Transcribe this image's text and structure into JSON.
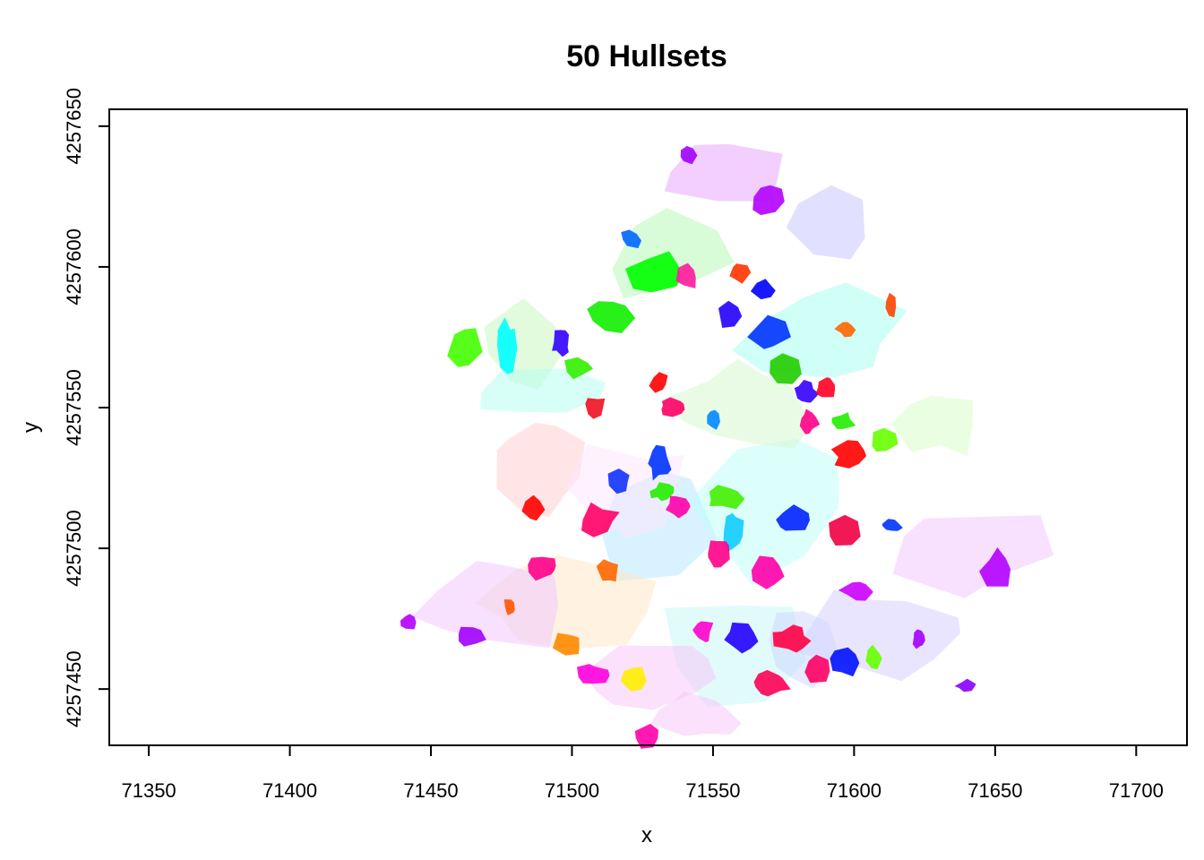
{
  "chart_data": {
    "type": "area",
    "title": "50 Hullsets",
    "xlabel": "x",
    "ylabel": "y",
    "xlim": [
      71336,
      71718
    ],
    "ylim": [
      4257430,
      4257656
    ],
    "xticks": [
      71350,
      71400,
      71450,
      71500,
      71550,
      71600,
      71650,
      71700
    ],
    "yticks": [
      4257450,
      4257500,
      4257550,
      4257600,
      4257650
    ],
    "xtick_labels": [
      "71350",
      "71400",
      "71450",
      "71500",
      "71550",
      "71600",
      "71650",
      "71700"
    ],
    "ytick_labels": [
      "4257450",
      "4257500",
      "4257550",
      "4257600",
      "4257650"
    ],
    "hull_count": 50,
    "data_extent": {
      "x": [
        71437,
        71680
      ],
      "y": [
        4257445,
        4257652
      ]
    },
    "hulls_solid": [
      {
        "x": 71541,
        "y": 4257640,
        "w": 9,
        "h": 10,
        "color": "#a100ff"
      },
      {
        "x": 71569,
        "y": 4257624,
        "w": 14,
        "h": 14,
        "color": "#b300ff"
      },
      {
        "x": 71521,
        "y": 4257610,
        "w": 10,
        "h": 9,
        "color": "#0066ff"
      },
      {
        "x": 71530,
        "y": 4257598,
        "w": 26,
        "h": 18,
        "color": "#00ff00"
      },
      {
        "x": 71513,
        "y": 4257583,
        "w": 20,
        "h": 16,
        "color": "#11ee00"
      },
      {
        "x": 71541,
        "y": 4257597,
        "w": 9,
        "h": 12,
        "color": "#ff1aa0"
      },
      {
        "x": 71559,
        "y": 4257598,
        "w": 10,
        "h": 10,
        "color": "#ff3300"
      },
      {
        "x": 71568,
        "y": 4257592,
        "w": 11,
        "h": 9,
        "color": "#0000ff"
      },
      {
        "x": 71556,
        "y": 4257583,
        "w": 11,
        "h": 11,
        "color": "#2200ff"
      },
      {
        "x": 71570,
        "y": 4257576,
        "w": 16,
        "h": 16,
        "color": "#0033ff"
      },
      {
        "x": 71597,
        "y": 4257578,
        "w": 8,
        "h": 7,
        "color": "#ff6600"
      },
      {
        "x": 71613,
        "y": 4257586,
        "w": 6,
        "h": 12,
        "color": "#ff4400"
      },
      {
        "x": 71462,
        "y": 4257572,
        "w": 14,
        "h": 20,
        "color": "#44ff00"
      },
      {
        "x": 71477,
        "y": 4257572,
        "w": 8,
        "h": 24,
        "color": "#00ffff"
      },
      {
        "x": 71496,
        "y": 4257573,
        "w": 8,
        "h": 12,
        "color": "#3300ff"
      },
      {
        "x": 71502,
        "y": 4257564,
        "w": 12,
        "h": 10,
        "color": "#33ee00"
      },
      {
        "x": 71508,
        "y": 4257550,
        "w": 10,
        "h": 10,
        "color": "#ee1122"
      },
      {
        "x": 71531,
        "y": 4257559,
        "w": 8,
        "h": 10,
        "color": "#ff0000"
      },
      {
        "x": 71536,
        "y": 4257550,
        "w": 14,
        "h": 8,
        "color": "#ff0066"
      },
      {
        "x": 71550,
        "y": 4257546,
        "w": 6,
        "h": 10,
        "color": "#0088ff"
      },
      {
        "x": 71575,
        "y": 4257564,
        "w": 14,
        "h": 14,
        "color": "#22cc00"
      },
      {
        "x": 71583,
        "y": 4257555,
        "w": 10,
        "h": 12,
        "color": "#3300ff"
      },
      {
        "x": 71590,
        "y": 4257557,
        "w": 10,
        "h": 10,
        "color": "#ff0022"
      },
      {
        "x": 71584,
        "y": 4257545,
        "w": 8,
        "h": 10,
        "color": "#ff0088"
      },
      {
        "x": 71596,
        "y": 4257545,
        "w": 10,
        "h": 8,
        "color": "#22ee00"
      },
      {
        "x": 71599,
        "y": 4257533,
        "w": 16,
        "h": 12,
        "color": "#ff0000"
      },
      {
        "x": 71610,
        "y": 4257538,
        "w": 12,
        "h": 12,
        "color": "#66ff00"
      },
      {
        "x": 71531,
        "y": 4257530,
        "w": 10,
        "h": 14,
        "color": "#0033ff"
      },
      {
        "x": 71517,
        "y": 4257524,
        "w": 10,
        "h": 10,
        "color": "#1133ff"
      },
      {
        "x": 71532,
        "y": 4257520,
        "w": 10,
        "h": 8,
        "color": "#22ee00"
      },
      {
        "x": 71554,
        "y": 4257518,
        "w": 16,
        "h": 10,
        "color": "#44ee00"
      },
      {
        "x": 71486,
        "y": 4257515,
        "w": 10,
        "h": 12,
        "color": "#ff0000"
      },
      {
        "x": 71510,
        "y": 4257510,
        "w": 16,
        "h": 14,
        "color": "#ff0066"
      },
      {
        "x": 71538,
        "y": 4257515,
        "w": 12,
        "h": 10,
        "color": "#ff00aa"
      },
      {
        "x": 71557,
        "y": 4257506,
        "w": 10,
        "h": 16,
        "color": "#11ccff"
      },
      {
        "x": 71578,
        "y": 4257510,
        "w": 18,
        "h": 12,
        "color": "#0022ff"
      },
      {
        "x": 71597,
        "y": 4257506,
        "w": 14,
        "h": 12,
        "color": "#ee0044"
      },
      {
        "x": 71613,
        "y": 4257508,
        "w": 10,
        "h": 6,
        "color": "#0033ff"
      },
      {
        "x": 71552,
        "y": 4257498,
        "w": 10,
        "h": 12,
        "color": "#ff0088"
      },
      {
        "x": 71570,
        "y": 4257492,
        "w": 14,
        "h": 16,
        "color": "#ff00aa"
      },
      {
        "x": 71490,
        "y": 4257493,
        "w": 14,
        "h": 10,
        "color": "#ff0088"
      },
      {
        "x": 71513,
        "y": 4257492,
        "w": 10,
        "h": 10,
        "color": "#ff6600"
      },
      {
        "x": 71478,
        "y": 4257479,
        "w": 6,
        "h": 8,
        "color": "#ff5500"
      },
      {
        "x": 71601,
        "y": 4257485,
        "w": 14,
        "h": 10,
        "color": "#cc00ff"
      },
      {
        "x": 71651,
        "y": 4257493,
        "w": 14,
        "h": 16,
        "color": "#b300ff"
      },
      {
        "x": 71546,
        "y": 4257471,
        "w": 10,
        "h": 10,
        "color": "#ff00cc"
      },
      {
        "x": 71560,
        "y": 4257468,
        "w": 14,
        "h": 14,
        "color": "#2200ff"
      },
      {
        "x": 71578,
        "y": 4257468,
        "w": 16,
        "h": 14,
        "color": "#ff0044"
      },
      {
        "x": 71596,
        "y": 4257460,
        "w": 14,
        "h": 14,
        "color": "#0011ff"
      },
      {
        "x": 71587,
        "y": 4257457,
        "w": 14,
        "h": 14,
        "color": "#ff0066"
      },
      {
        "x": 71570,
        "y": 4257452,
        "w": 18,
        "h": 12,
        "color": "#ff0055"
      },
      {
        "x": 71464,
        "y": 4257469,
        "w": 14,
        "h": 10,
        "color": "#a100ff"
      },
      {
        "x": 71442,
        "y": 4257474,
        "w": 7,
        "h": 7,
        "color": "#b300ff"
      },
      {
        "x": 71498,
        "y": 4257466,
        "w": 14,
        "h": 10,
        "color": "#ff8800"
      },
      {
        "x": 71507,
        "y": 4257455,
        "w": 16,
        "h": 10,
        "color": "#ff00dd"
      },
      {
        "x": 71522,
        "y": 4257454,
        "w": 10,
        "h": 12,
        "color": "#ffee00"
      },
      {
        "x": 71623,
        "y": 4257468,
        "w": 6,
        "h": 8,
        "color": "#a100ff"
      },
      {
        "x": 71640,
        "y": 4257451,
        "w": 10,
        "h": 6,
        "color": "#8800ff"
      },
      {
        "x": 71607,
        "y": 4257461,
        "w": 6,
        "h": 10,
        "color": "#66ff00"
      },
      {
        "x": 71527,
        "y": 4257433,
        "w": 12,
        "h": 10,
        "color": "#ff00aa"
      }
    ],
    "hulls_faint": [
      {
        "x": 71555,
        "y": 4257632,
        "w": 60,
        "h": 30,
        "color": "#e8a8ff"
      },
      {
        "x": 71535,
        "y": 4257605,
        "w": 60,
        "h": 40,
        "color": "#b8f8b8"
      },
      {
        "x": 71590,
        "y": 4257616,
        "w": 40,
        "h": 40,
        "color": "#c8c8ff"
      },
      {
        "x": 71482,
        "y": 4257572,
        "w": 40,
        "h": 40,
        "color": "#c8f8c0"
      },
      {
        "x": 71488,
        "y": 4257555,
        "w": 60,
        "h": 20,
        "color": "#b8fff0"
      },
      {
        "x": 71590,
        "y": 4257575,
        "w": 70,
        "h": 40,
        "color": "#a8fff0"
      },
      {
        "x": 71630,
        "y": 4257545,
        "w": 40,
        "h": 30,
        "color": "#d8ffc8"
      },
      {
        "x": 71488,
        "y": 4257530,
        "w": 50,
        "h": 50,
        "color": "#ffd0d0"
      },
      {
        "x": 71530,
        "y": 4257510,
        "w": 60,
        "h": 60,
        "color": "#b8e8ff"
      },
      {
        "x": 71570,
        "y": 4257515,
        "w": 60,
        "h": 60,
        "color": "#c0fff8"
      },
      {
        "x": 71500,
        "y": 4257480,
        "w": 70,
        "h": 40,
        "color": "#ffe8c8"
      },
      {
        "x": 71470,
        "y": 4257480,
        "w": 70,
        "h": 40,
        "color": "#f0c8ff"
      },
      {
        "x": 71560,
        "y": 4257465,
        "w": 70,
        "h": 50,
        "color": "#c8f8f8"
      },
      {
        "x": 71640,
        "y": 4257500,
        "w": 80,
        "h": 40,
        "color": "#f0c8ff"
      },
      {
        "x": 71610,
        "y": 4257470,
        "w": 70,
        "h": 40,
        "color": "#d8d0ff"
      },
      {
        "x": 71530,
        "y": 4257455,
        "w": 60,
        "h": 30,
        "color": "#f8c8f8"
      },
      {
        "x": 71545,
        "y": 4257440,
        "w": 40,
        "h": 20,
        "color": "#f8c8f8"
      },
      {
        "x": 71580,
        "y": 4257465,
        "w": 30,
        "h": 40,
        "color": "#d0d8ff"
      },
      {
        "x": 71520,
        "y": 4257520,
        "w": 60,
        "h": 40,
        "color": "#ffe8ff"
      },
      {
        "x": 71560,
        "y": 4257550,
        "w": 60,
        "h": 40,
        "color": "#d8f8d0"
      }
    ]
  }
}
